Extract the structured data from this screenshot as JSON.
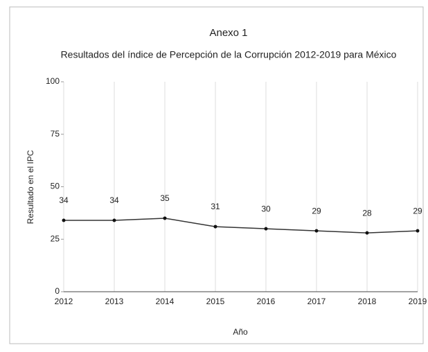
{
  "chart_data": {
    "type": "line",
    "title": "Anexo 1",
    "subtitle": "Resultados del índice de Percepción de la Corrupción 2012-2019 para México",
    "x_label": "Año",
    "y_label": "Resultado en el IPC",
    "x": [
      2012,
      2013,
      2014,
      2015,
      2016,
      2017,
      2018,
      2019
    ],
    "series": [
      {
        "name": "Resultado en el IPC",
        "color": "#333333",
        "values": [
          34,
          34,
          35,
          31,
          30,
          29,
          28,
          29
        ]
      }
    ],
    "xlim": [
      2012,
      2019
    ],
    "xticks": [
      2012,
      2013,
      2014,
      2015,
      2016,
      2017,
      2018,
      2019
    ],
    "ylim": [
      0,
      100
    ],
    "yticks": [
      0,
      25,
      50,
      75,
      100
    ],
    "grid": true
  }
}
